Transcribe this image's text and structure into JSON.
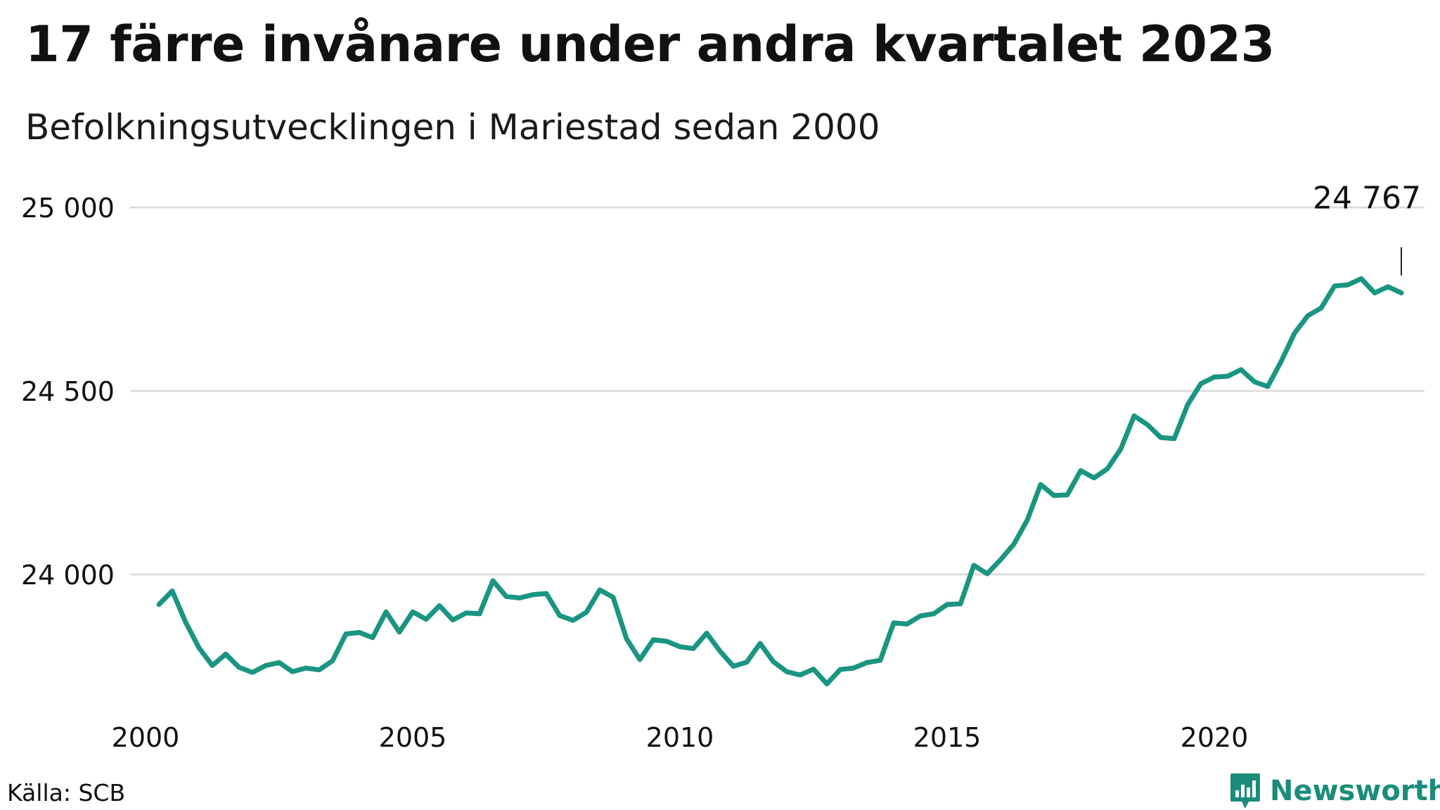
{
  "title": "17 färre invånare under andra kvartalet 2023",
  "subtitle": "Befolkningsutvecklingen i Mariestad sedan 2000",
  "source": "Källa: SCB",
  "brand": {
    "name": "Newsworthy",
    "icon": "bar-chart-logo-icon",
    "color": "#1b8c7c"
  },
  "colors": {
    "line": "#1a9582",
    "grid": "#dddddd",
    "text": "#111111"
  },
  "chart_data": {
    "type": "line",
    "title": "17 färre invånare under andra kvartalet 2023",
    "subtitle": "Befolkningsutvecklingen i Mariestad sedan 2000",
    "xlabel": "",
    "ylabel": "",
    "xlim": [
      2000,
      2023.5
    ],
    "ylim": [
      23640,
      25000
    ],
    "grid": true,
    "legend": "none",
    "y_ticks": [
      24000,
      24500,
      25000
    ],
    "y_tick_labels": [
      "24 000",
      "24 500",
      "25 000"
    ],
    "x_ticks": [
      2000,
      2005,
      2010,
      2015,
      2020
    ],
    "x_tick_labels": [
      "2000",
      "2005",
      "2010",
      "2015",
      "2020"
    ],
    "annotation": {
      "label": "24 767",
      "value": 24767
    },
    "series": [
      {
        "x": [
          2000.25,
          2000.5,
          2000.75,
          2001.0,
          2001.25,
          2001.5,
          2001.75,
          2002.0,
          2002.25,
          2002.5,
          2002.75,
          2003.0,
          2003.25,
          2003.5,
          2003.75,
          2004.0,
          2004.25,
          2004.5,
          2004.75,
          2005.0,
          2005.25,
          2005.5,
          2005.75,
          2006.0,
          2006.25,
          2006.5,
          2006.75,
          2007.0,
          2007.25,
          2007.5,
          2007.75,
          2008.0,
          2008.25,
          2008.5,
          2008.75,
          2009.0,
          2009.25,
          2009.5,
          2009.75,
          2010.0,
          2010.25,
          2010.5,
          2010.75,
          2011.0,
          2011.25,
          2011.5,
          2011.75,
          2012.0,
          2012.25,
          2012.5,
          2012.75,
          2013.0,
          2013.25,
          2013.5,
          2013.75,
          2014.0,
          2014.25,
          2014.5,
          2014.75,
          2015.0,
          2015.25,
          2015.5,
          2015.75,
          2016.0,
          2016.25,
          2016.5,
          2016.75,
          2017.0,
          2017.25,
          2017.5,
          2017.75,
          2018.0,
          2018.25,
          2018.5,
          2018.75,
          2019.0,
          2019.25,
          2019.5,
          2019.75,
          2020.0,
          2020.25,
          2020.5,
          2020.75,
          2021.0,
          2021.25,
          2021.5,
          2021.75,
          2022.0,
          2022.25,
          2022.5,
          2022.75,
          2023.0,
          2023.25,
          2023.5
        ],
        "values": [
          23918,
          23955,
          23870,
          23800,
          23752,
          23783,
          23747,
          23733,
          23752,
          23760,
          23735,
          23745,
          23740,
          23765,
          23838,
          23842,
          23828,
          23898,
          23843,
          23898,
          23878,
          23915,
          23876,
          23895,
          23893,
          23983,
          23940,
          23936,
          23945,
          23948,
          23888,
          23875,
          23897,
          23958,
          23938,
          23825,
          23768,
          23822,
          23818,
          23803,
          23798,
          23840,
          23791,
          23750,
          23761,
          23812,
          23762,
          23735,
          23726,
          23742,
          23702,
          23741,
          23745,
          23760,
          23766,
          23868,
          23865,
          23887,
          23893,
          23918,
          23920,
          24025,
          24002,
          24040,
          24083,
          24148,
          24245,
          24215,
          24217,
          24283,
          24263,
          24288,
          24342,
          24432,
          24408,
          24373,
          24370,
          24462,
          24520,
          24538,
          24540,
          24558,
          24525,
          24512,
          24580,
          24657,
          24705,
          24726,
          24786,
          24789,
          24806,
          24767,
          24784,
          24767
        ]
      }
    ]
  }
}
